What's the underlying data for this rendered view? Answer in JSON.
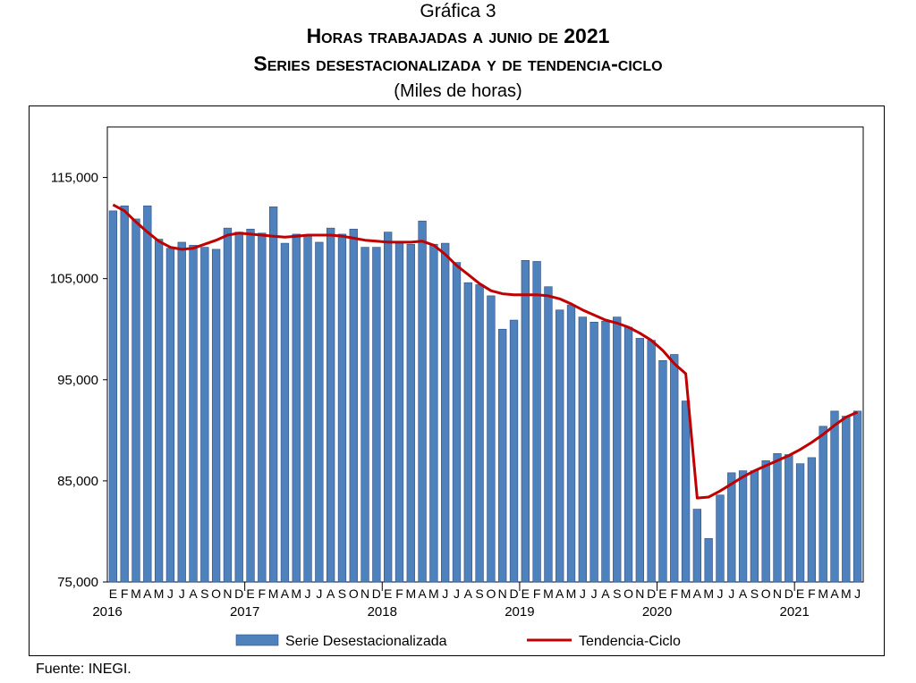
{
  "header": {
    "label": "Gráfica 3",
    "title": "Horas trabajadas a junio de 2021",
    "subtitle": "Series desestacionalizada y de tendencia-ciclo",
    "units": "(Miles de horas)"
  },
  "footer": {
    "source": "Fuente: INEGI."
  },
  "colors": {
    "bars": "#4F81BD",
    "bar_stroke": "#2F4F7F",
    "trend": "#C00000"
  },
  "chart_data": {
    "type": "bar",
    "categories": [
      "E",
      "F",
      "M",
      "A",
      "M",
      "J",
      "J",
      "A",
      "S",
      "O",
      "N",
      "D",
      "E",
      "F",
      "M",
      "A",
      "M",
      "J",
      "J",
      "A",
      "S",
      "O",
      "N",
      "D",
      "E",
      "F",
      "M",
      "A",
      "M",
      "J",
      "J",
      "A",
      "S",
      "O",
      "N",
      "D",
      "E",
      "F",
      "M",
      "A",
      "M",
      "J",
      "J",
      "A",
      "S",
      "O",
      "N",
      "D",
      "E",
      "F",
      "M",
      "A",
      "M",
      "J",
      "J",
      "A",
      "S",
      "O",
      "N",
      "D",
      "E",
      "F",
      "M",
      "A",
      "M",
      "J"
    ],
    "year_labels": [
      "2016",
      "2017",
      "2018",
      "2019",
      "2020",
      "2021"
    ],
    "series": [
      {
        "name": "Serie Desestacionalizada",
        "type": "bar",
        "values": [
          111700,
          112200,
          110900,
          112200,
          108900,
          108000,
          108600,
          108300,
          108100,
          107900,
          110000,
          109600,
          109900,
          109500,
          112100,
          108500,
          109400,
          109200,
          108600,
          110000,
          109400,
          109900,
          108100,
          108100,
          109600,
          108500,
          108400,
          110700,
          108400,
          108500,
          106600,
          104600,
          104400,
          103300,
          100000,
          100900,
          106800,
          106700,
          104200,
          101900,
          102400,
          101200,
          100700,
          100800,
          101200,
          100200,
          99100,
          98900,
          96900,
          97500,
          92900,
          82200,
          79300,
          83600,
          85800,
          86000,
          86000,
          87000,
          87700,
          87600,
          86700,
          87300,
          90400,
          91900,
          91400,
          91900
        ]
      },
      {
        "name": "Tendencia-Ciclo",
        "type": "line",
        "values": [
          112300,
          111700,
          110600,
          109600,
          108700,
          108100,
          107900,
          108000,
          108400,
          108800,
          109300,
          109500,
          109400,
          109300,
          109200,
          109100,
          109200,
          109300,
          109300,
          109300,
          109200,
          109000,
          108800,
          108700,
          108600,
          108600,
          108600,
          108700,
          108300,
          107400,
          106300,
          105400,
          104500,
          103800,
          103500,
          103400,
          103400,
          103400,
          103300,
          103000,
          102500,
          101900,
          101400,
          100900,
          100600,
          100200,
          99600,
          98900,
          97900,
          96600,
          95600,
          83300,
          83400,
          84000,
          84700,
          85400,
          86000,
          86500,
          87000,
          87500,
          88100,
          88800,
          89600,
          90500,
          91300,
          91800
        ]
      }
    ],
    "y_ticks": [
      "75,000",
      "85,000",
      "95,000",
      "105,000",
      "115,000"
    ],
    "ylim": [
      75000,
      120000
    ],
    "grid": false,
    "legend": "bottom"
  }
}
